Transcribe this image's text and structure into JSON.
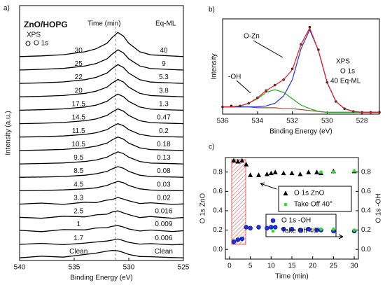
{
  "chart_data": [
    {
      "type": "line",
      "panel_label": "a)",
      "xlabel": "Binding Energy (eV)",
      "ylabel": "Intensity (a.u.)",
      "xlim": [
        540,
        525
      ],
      "xticks": [
        540,
        535,
        530,
        525
      ],
      "ylim": [
        0,
        19
      ],
      "reference_x": 531.2,
      "annotations": [
        "ZnO/HOPG",
        "XPS",
        "O 1s",
        "Time (min)",
        "Eq-ML"
      ],
      "x": [
        540,
        538,
        536,
        534,
        533,
        532,
        531.5,
        531,
        530.5,
        530,
        529,
        528,
        526,
        525
      ],
      "series": [
        {
          "name": "30",
          "eq_ml": "40",
          "color": "#000",
          "values": [
            15.2,
            15.25,
            15.34,
            15.56,
            15.78,
            16.19,
            16.64,
            17,
            16.73,
            16.19,
            15.56,
            15.33,
            15.24,
            15.2
          ]
        },
        {
          "name": "25",
          "eq_ml": "9",
          "color": "#000",
          "values": [
            14.2,
            14.25,
            14.32,
            14.5,
            14.68,
            15.03,
            15.4,
            15.7,
            15.48,
            15.03,
            14.5,
            14.31,
            14.23,
            14.2
          ]
        },
        {
          "name": "22",
          "eq_ml": "5.3",
          "color": "#000",
          "values": [
            13.2,
            13.24,
            13.31,
            13.48,
            13.65,
            13.97,
            14.32,
            14.6,
            14.39,
            13.97,
            13.48,
            13.3,
            13.23,
            13.2
          ]
        },
        {
          "name": "20",
          "eq_ml": "3.8",
          "color": "#000",
          "values": [
            12.2,
            12.24,
            12.3,
            12.46,
            12.62,
            12.92,
            13.24,
            13.5,
            13.31,
            12.92,
            12.46,
            12.29,
            12.23,
            12.2
          ]
        },
        {
          "name": "17.5",
          "eq_ml": "1.3",
          "color": "#000",
          "values": [
            11.2,
            11.24,
            11.3,
            11.44,
            11.58,
            11.86,
            12.16,
            12.4,
            12.22,
            11.86,
            11.44,
            11.28,
            11.22,
            11.2
          ]
        },
        {
          "name": "14.5",
          "eq_ml": "0.47",
          "color": "#000",
          "values": [
            10.2,
            10.23,
            10.29,
            10.42,
            10.55,
            10.81,
            11.08,
            11.3,
            11.14,
            10.81,
            10.42,
            10.28,
            10.22,
            10.2
          ]
        },
        {
          "name": "11.5",
          "eq_ml": "0.2",
          "color": "#000",
          "values": [
            9.2,
            9.23,
            9.28,
            9.4,
            9.52,
            9.75,
            10,
            10.2,
            10.05,
            9.75,
            9.4,
            9.27,
            9.22,
            9.2
          ]
        },
        {
          "name": "10.5",
          "eq_ml": "0.18",
          "color": "#000",
          "values": [
            8.2,
            8.23,
            8.28,
            8.4,
            8.52,
            8.75,
            9,
            9.2,
            9.05,
            8.75,
            8.4,
            8.27,
            8.22,
            8.2
          ]
        },
        {
          "name": "9.5",
          "eq_ml": "0.13",
          "color": "#000",
          "values": [
            7.2,
            7.23,
            7.27,
            7.38,
            7.49,
            7.7,
            7.92,
            8.1,
            7.97,
            7.7,
            7.38,
            7.26,
            7.22,
            7.2
          ]
        },
        {
          "name": "8.5",
          "eq_ml": "0.08",
          "color": "#000",
          "values": [
            6.2,
            6.22,
            6.26,
            6.36,
            6.46,
            6.64,
            6.84,
            7,
            6.88,
            6.64,
            6.36,
            6.26,
            6.22,
            6.2
          ]
        },
        {
          "name": "4.5",
          "eq_ml": "0.03",
          "color": "#000",
          "values": [
            5.2,
            5.22,
            5.26,
            5.34,
            5.42,
            5.59,
            5.76,
            5.9,
            5.8,
            5.59,
            5.34,
            5.25,
            5.21,
            5.2
          ]
        },
        {
          "name": "3.3",
          "eq_ml": "0.02",
          "color": "#000",
          "values": [
            4.2,
            4.28,
            4.18,
            4.35,
            4.31,
            4.5,
            4.55,
            4.7,
            4.58,
            4.45,
            4.25,
            4.3,
            4.18,
            4.22
          ]
        },
        {
          "name": "2.5",
          "eq_ml": "0.016",
          "color": "#000",
          "values": [
            3.22,
            3.15,
            3.3,
            3.25,
            3.4,
            3.45,
            3.62,
            3.7,
            3.55,
            3.42,
            3.2,
            3.28,
            3.15,
            3.2
          ]
        },
        {
          "name": "1",
          "eq_ml": "0.009",
          "color": "#000",
          "values": [
            2.25,
            2.15,
            2.3,
            2.28,
            2.42,
            2.45,
            2.55,
            2.6,
            2.5,
            2.35,
            2.2,
            2.27,
            2.16,
            2.22
          ]
        },
        {
          "name": "1.7",
          "eq_ml": "0.006",
          "color": "#000",
          "values": [
            1.2,
            1.28,
            1.18,
            1.3,
            1.38,
            1.45,
            1.52,
            1.6,
            1.48,
            1.35,
            1.22,
            1.26,
            1.17,
            1.21
          ]
        },
        {
          "name": "Clean",
          "eq_ml": "Clean",
          "color": "#000",
          "values": [
            0.2,
            0.32,
            0.25,
            0.45,
            0.55,
            0.7,
            0.75,
            0.72,
            0.6,
            0.45,
            0.3,
            0.28,
            0.22,
            0.2
          ]
        }
      ]
    },
    {
      "type": "line",
      "panel_label": "b)",
      "xlabel": "Binding Energy (eV)",
      "ylabel": "Intensity",
      "xlim": [
        536,
        527
      ],
      "xticks": [
        536,
        534,
        532,
        530,
        528
      ],
      "ylim": [
        0,
        1.05
      ],
      "annotations": [
        "O-Zn",
        "-OH",
        "XPS",
        "O 1s",
        "40 Eq-ML"
      ],
      "x": [
        536,
        535.5,
        535,
        534.5,
        534,
        533.5,
        533,
        532.5,
        532,
        531.5,
        531,
        530.5,
        530,
        529.5,
        529,
        528.5,
        528,
        527.5,
        527
      ],
      "series": [
        {
          "color": "#a0522d",
          "values": [
            0.08,
            0.08,
            0.08,
            0.08,
            0.07,
            0.07,
            0.07,
            0.06,
            0.06,
            0.05,
            0.04,
            0.03,
            0.02,
            0.02,
            0.02,
            0.02,
            0.02,
            0.02,
            0.02
          ]
        },
        {
          "color": "#22aa22",
          "values": [
            0.08,
            0.08,
            0.09,
            0.12,
            0.17,
            0.24,
            0.27,
            0.24,
            0.17,
            0.1,
            0.06,
            0.03,
            0.02,
            0.02,
            0.02,
            0.02,
            0.02,
            0.02,
            0.02
          ]
        },
        {
          "color": "#2233dd",
          "values": [
            0.08,
            0.08,
            0.08,
            0.08,
            0.08,
            0.09,
            0.12,
            0.2,
            0.38,
            0.72,
            0.93,
            0.7,
            0.35,
            0.14,
            0.06,
            0.03,
            0.02,
            0.02,
            0.02
          ]
        },
        {
          "color": "#222222",
          "marker": "dot",
          "values": [
            0.08,
            0.09,
            0.09,
            0.12,
            0.18,
            0.26,
            0.32,
            0.38,
            0.5,
            0.77,
            0.96,
            0.71,
            0.35,
            0.14,
            0.06,
            0.03,
            0.02,
            0.02,
            0.02
          ]
        },
        {
          "color": "#e02020",
          "values": [
            0.08,
            0.08,
            0.09,
            0.12,
            0.18,
            0.26,
            0.32,
            0.38,
            0.49,
            0.77,
            0.95,
            0.7,
            0.35,
            0.14,
            0.06,
            0.03,
            0.02,
            0.02,
            0.02
          ]
        }
      ]
    },
    {
      "type": "scatter",
      "panel_label": "c)",
      "xlabel": "Time (min)",
      "ylabel": "O 1s ZnO",
      "y2label": "O 1s -OH",
      "xlim": [
        -1,
        31
      ],
      "xticks": [
        0,
        5,
        10,
        15,
        20,
        25,
        30
      ],
      "ylim": [
        -0.1,
        0.95
      ],
      "yticks": [
        {
          "value": 0,
          "label": "0.0"
        },
        0.2,
        0.4,
        0.6,
        0.8
      ],
      "y2lim": [
        -0.1,
        0.95
      ],
      "y2ticks": [
        {
          "value": 0,
          "label": "0.0"
        },
        0.2,
        0.4,
        0.6,
        0.8
      ],
      "series": [
        {
          "name": "O 1s ZnO",
          "color": "#000",
          "marker": "triangle",
          "x": [
            1,
            2,
            3,
            4,
            5,
            7,
            9,
            10,
            11,
            13,
            15,
            17,
            19,
            21,
            22,
            25,
            30
          ],
          "values": [
            0.92,
            0.91,
            0.92,
            0.88,
            0.77,
            0.77,
            0.78,
            0.79,
            0.8,
            0.79,
            0.79,
            0.78,
            0.8,
            0.8,
            0.79,
            0.81,
            0.81
          ]
        },
        {
          "name": "Take Off 40°",
          "color": "#33dd33",
          "marker": "dot",
          "x": [
            22,
            25,
            30
          ],
          "values": [
            0.8,
            0.8,
            0.81
          ]
        },
        {
          "name": "O 1s -OH",
          "color": "#2233dd",
          "marker": "circle",
          "axis": "y2",
          "x": [
            1,
            2,
            3,
            4,
            5,
            7,
            9,
            10,
            11,
            13,
            15,
            17,
            19,
            21,
            22,
            25,
            30
          ],
          "values": [
            0.08,
            0.1,
            0.11,
            0.23,
            0.22,
            0.23,
            0.22,
            0.23,
            0.23,
            0.21,
            0.21,
            0.2,
            0.21,
            0.2,
            0.2,
            0.19,
            0.19
          ]
        },
        {
          "name": "Take Off 40°",
          "color": "#33dd33",
          "marker": "dot",
          "axis": "y2",
          "x": [
            22,
            25,
            30
          ],
          "values": [
            0.21,
            0.21,
            0.2
          ]
        }
      ]
    }
  ]
}
